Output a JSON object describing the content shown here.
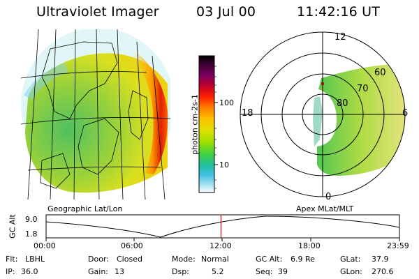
{
  "header": {
    "title": "Ultraviolet Imager",
    "date": "03 Jul 00",
    "time": "11:42:16 UT"
  },
  "geo_panel": {
    "caption": "Geographic Lat/Lon"
  },
  "colorbar": {
    "label": "photon cm-2s-1",
    "ticks": [
      "100",
      "10"
    ],
    "colors": [
      "#000000",
      "#3a0030",
      "#7a0060",
      "#c00030",
      "#ff2000",
      "#ff8000",
      "#ffc000",
      "#e0e000",
      "#a0e000",
      "#40d040",
      "#20c0a0",
      "#40c0e0",
      "#a0e0f0",
      "#ffffff"
    ]
  },
  "polar_panel": {
    "caption": "Apex MLat/MLT",
    "mlt_labels": [
      "12",
      "18",
      "6",
      "0"
    ],
    "lat_labels": [
      "60",
      "70",
      "80"
    ]
  },
  "timeline": {
    "axis_label": "GC Alt",
    "y_ticks": [
      "9.0",
      "1.8"
    ],
    "x_ticks": [
      "00:00",
      "06:00",
      "12:00",
      "18:00",
      "23:59"
    ],
    "current_marker_fraction": 0.495
  },
  "status": {
    "row1": [
      {
        "key": "Flt:",
        "value": "LBHL"
      },
      {
        "key": "Door:",
        "value": "Closed"
      },
      {
        "key": "Mode:",
        "value": "Normal"
      },
      {
        "key": "GC Alt:",
        "value": "6.9 Re"
      },
      {
        "key": "GLat:",
        "value": "37.9"
      }
    ],
    "row2": [
      {
        "key": "IP:",
        "value": "36.0"
      },
      {
        "key": "Gain:",
        "value": "13"
      },
      {
        "key": "Dsp:",
        "value": "5.2"
      },
      {
        "key": "Seq:",
        "value": "39"
      },
      {
        "key": "GLon:",
        "value": "270.6"
      }
    ]
  }
}
